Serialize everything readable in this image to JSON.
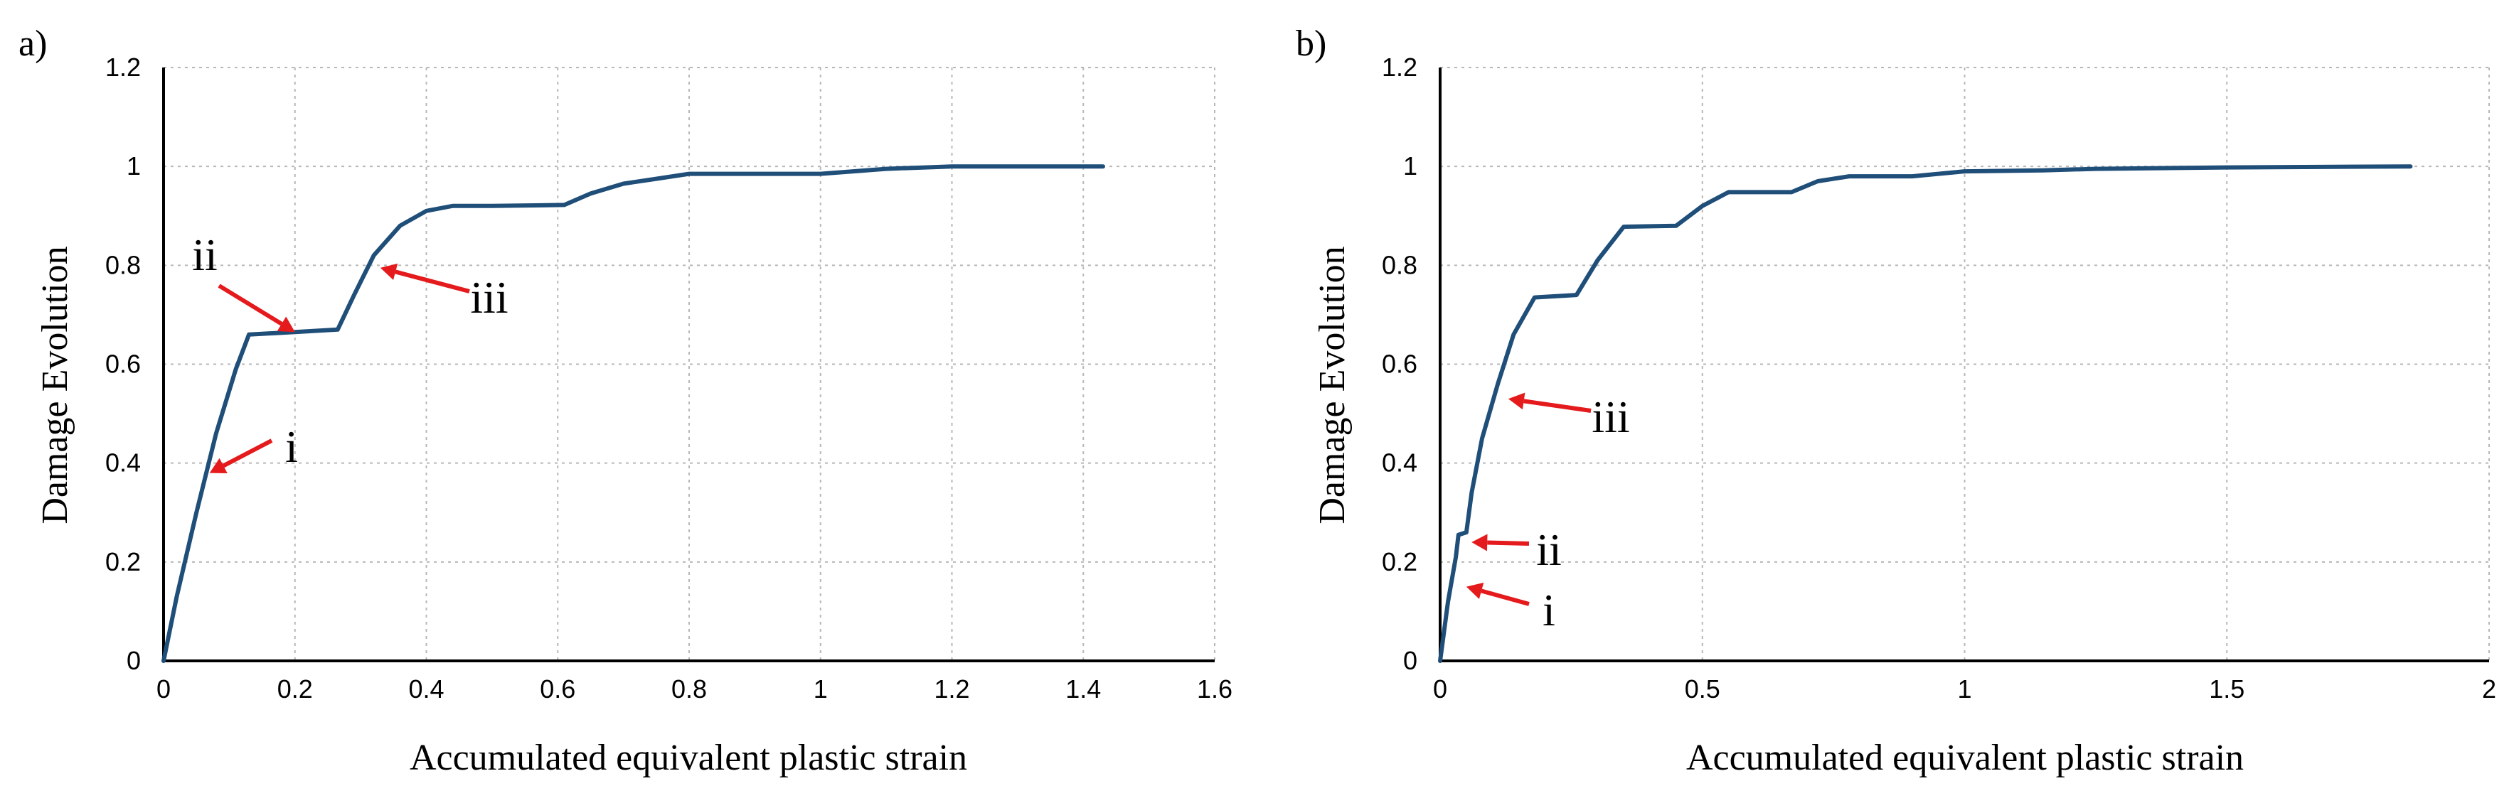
{
  "chart_data": [
    {
      "panel_label": "a)",
      "type": "line",
      "xlabel": "Accumulated equivalent plastic strain",
      "ylabel": "Damage Evolution",
      "xlim": [
        0,
        1.6
      ],
      "ylim": [
        0,
        1.2
      ],
      "xticks": [
        0,
        0.2,
        0.4,
        0.6,
        0.8,
        1,
        1.2,
        1.4,
        1.6
      ],
      "yticks": [
        0,
        0.2,
        0.4,
        0.6,
        0.8,
        1,
        1.2
      ],
      "xtick_labels": [
        "0",
        "0.2",
        "0.4",
        "0.6",
        "0.8",
        "1",
        "1.2",
        "1.4",
        "1.6"
      ],
      "ytick_labels": [
        "0",
        "0.2",
        "0.4",
        "0.6",
        "0.8",
        "1",
        "1.2"
      ],
      "grid": true,
      "series": [
        {
          "name": "damage",
          "color": "#1f4e79",
          "x": [
            0,
            0.02,
            0.05,
            0.08,
            0.11,
            0.13,
            0.2,
            0.265,
            0.29,
            0.32,
            0.36,
            0.4,
            0.44,
            0.5,
            0.61,
            0.65,
            0.7,
            0.75,
            0.8,
            0.9,
            1.0,
            1.05,
            1.1,
            1.2,
            1.3,
            1.43
          ],
          "y": [
            0,
            0.13,
            0.3,
            0.46,
            0.59,
            0.66,
            0.665,
            0.67,
            0.74,
            0.82,
            0.88,
            0.91,
            0.92,
            0.92,
            0.922,
            0.945,
            0.965,
            0.975,
            0.985,
            0.985,
            0.985,
            0.99,
            0.995,
            1.0,
            1.0,
            1.0
          ]
        }
      ],
      "annotations": [
        {
          "text": "i",
          "point": [
            0.07,
            0.38
          ]
        },
        {
          "text": "ii",
          "point": [
            0.2,
            0.665
          ]
        },
        {
          "text": "iii",
          "point": [
            0.33,
            0.795
          ]
        }
      ]
    },
    {
      "panel_label": "b)",
      "type": "line",
      "xlabel": "Accumulated equivalent plastic strain",
      "ylabel": "Damage Evolution",
      "xlim": [
        0,
        2
      ],
      "ylim": [
        0,
        1.2
      ],
      "xticks": [
        0,
        0.5,
        1,
        1.5,
        2
      ],
      "yticks": [
        0,
        0.2,
        0.4,
        0.6,
        0.8,
        1,
        1.2
      ],
      "xtick_labels": [
        "0",
        "0.5",
        "1",
        "1.5",
        "2"
      ],
      "ytick_labels": [
        "0",
        "0.2",
        "0.4",
        "0.6",
        "0.8",
        "1",
        "1.2"
      ],
      "grid": true,
      "series": [
        {
          "name": "damage",
          "color": "#1f4e79",
          "x": [
            0,
            0.015,
            0.03,
            0.035,
            0.05,
            0.06,
            0.08,
            0.11,
            0.14,
            0.18,
            0.26,
            0.3,
            0.35,
            0.45,
            0.5,
            0.55,
            0.67,
            0.72,
            0.78,
            0.9,
            1.0,
            1.15,
            1.25,
            1.5,
            1.85
          ],
          "y": [
            0,
            0.12,
            0.21,
            0.255,
            0.26,
            0.34,
            0.45,
            0.56,
            0.66,
            0.735,
            0.74,
            0.81,
            0.878,
            0.88,
            0.92,
            0.948,
            0.948,
            0.97,
            0.98,
            0.98,
            0.99,
            0.992,
            0.995,
            0.998,
            1.0
          ]
        }
      ],
      "annotations": [
        {
          "text": "i",
          "point": [
            0.05,
            0.15
          ]
        },
        {
          "text": "ii",
          "point": [
            0.06,
            0.24
          ]
        },
        {
          "text": "iii",
          "point": [
            0.13,
            0.53
          ]
        }
      ]
    }
  ]
}
